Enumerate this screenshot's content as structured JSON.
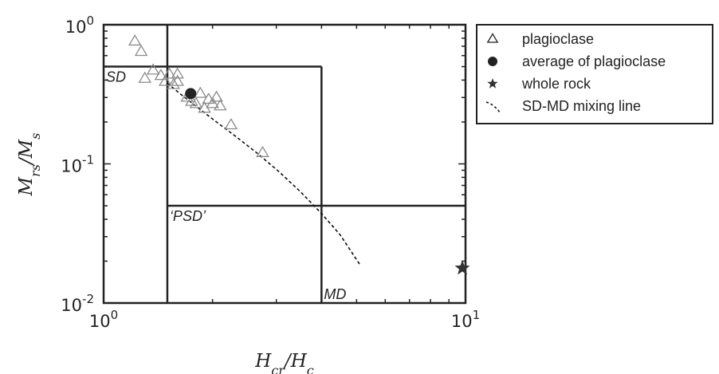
{
  "chart_data": {
    "type": "scatter",
    "xscale": "log",
    "yscale": "log",
    "xlim": [
      1,
      10
    ],
    "ylim": [
      0.01,
      1
    ],
    "x_ticks": [
      {
        "value": 1,
        "base": "10",
        "exp": "0"
      },
      {
        "value": 10,
        "base": "10",
        "exp": "1"
      }
    ],
    "y_ticks": [
      {
        "value": 0.01,
        "base": "10",
        "exp": "-2"
      },
      {
        "value": 0.1,
        "base": "10",
        "exp": "-1"
      },
      {
        "value": 1,
        "base": "10",
        "exp": "0"
      }
    ],
    "xlabel": {
      "main": "H",
      "sub1": "cr",
      "sep": "/",
      "main2": "H",
      "sub2": "c"
    },
    "ylabel": {
      "main": "M",
      "sub1": "rs",
      "sep": "/",
      "main2": "M",
      "sub2": "s"
    },
    "legend_position": "outside-right",
    "regions": [
      {
        "label": "SD",
        "x": 1.0,
        "y": 0.5,
        "anchor": "top-left"
      },
      {
        "label": "‘PSD’",
        "x": 1.5,
        "y": 0.05,
        "anchor": "top-left"
      },
      {
        "label": "MD",
        "x": 4.0,
        "y": 0.01,
        "anchor": "bottom-left"
      }
    ],
    "boundary_lines": [
      {
        "x1": 1.5,
        "y1": 0.01,
        "x2": 1.5,
        "y2": 1
      },
      {
        "x1": 1.0,
        "y1": 0.5,
        "x2": 4.0,
        "y2": 0.5
      },
      {
        "x1": 4.0,
        "y1": 0.5,
        "x2": 4.0,
        "y2": 0.01
      },
      {
        "x1": 1.5,
        "y1": 0.05,
        "x2": 10,
        "y2": 0.05
      }
    ],
    "series": [
      {
        "name": "plagioclase",
        "marker": "triangle",
        "color": "#8a8a8a",
        "points": [
          [
            1.22,
            0.76
          ],
          [
            1.27,
            0.64
          ],
          [
            1.3,
            0.41
          ],
          [
            1.37,
            0.47
          ],
          [
            1.44,
            0.43
          ],
          [
            1.48,
            0.39
          ],
          [
            1.52,
            0.44
          ],
          [
            1.56,
            0.37
          ],
          [
            1.6,
            0.44
          ],
          [
            1.6,
            0.39
          ],
          [
            1.7,
            0.3
          ],
          [
            1.75,
            0.28
          ],
          [
            1.8,
            0.27
          ],
          [
            1.85,
            0.32
          ],
          [
            1.9,
            0.25
          ],
          [
            1.95,
            0.29
          ],
          [
            2.0,
            0.27
          ],
          [
            2.05,
            0.3
          ],
          [
            2.1,
            0.26
          ],
          [
            2.25,
            0.19
          ],
          [
            2.75,
            0.12
          ]
        ]
      },
      {
        "name": "average of plagioclase",
        "marker": "circle",
        "color": "#222222",
        "points": [
          [
            1.74,
            0.32
          ]
        ]
      },
      {
        "name": "whole rock",
        "marker": "star",
        "color": "#333333",
        "points": [
          [
            9.8,
            0.0178
          ]
        ]
      },
      {
        "name": "SD-MD mixing line",
        "marker": "dashed-line",
        "color": "#111111",
        "points": [
          [
            1.5,
            0.38
          ],
          [
            1.65,
            0.31
          ],
          [
            1.8,
            0.26
          ],
          [
            2.0,
            0.21
          ],
          [
            2.3,
            0.16
          ],
          [
            2.65,
            0.12
          ],
          [
            3.05,
            0.088
          ],
          [
            3.5,
            0.063
          ],
          [
            4.0,
            0.044
          ],
          [
            4.5,
            0.031
          ],
          [
            5.1,
            0.019
          ]
        ]
      }
    ]
  }
}
